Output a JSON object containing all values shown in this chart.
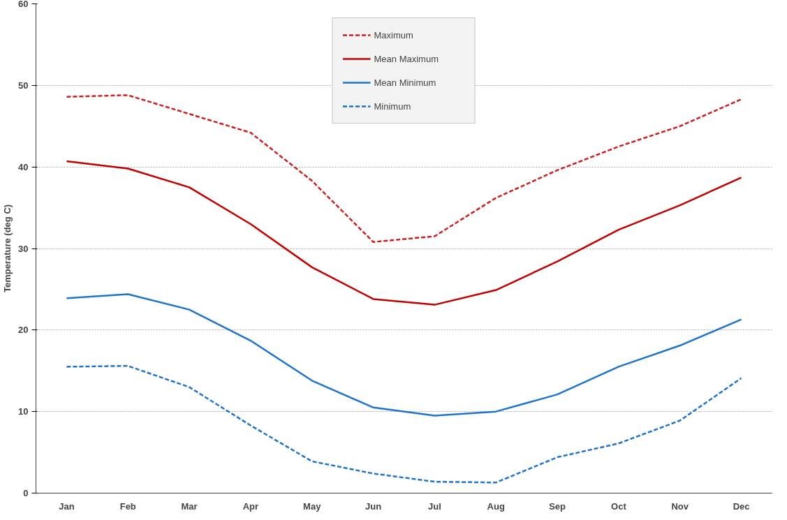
{
  "chart_data": {
    "type": "line",
    "ylabel": "Temperature (deg C)",
    "categories": [
      "Jan",
      "Feb",
      "Mar",
      "Apr",
      "May",
      "Jun",
      "Jul",
      "Aug",
      "Sep",
      "Oct",
      "Nov",
      "Dec"
    ],
    "ylim": [
      0,
      60
    ],
    "yticks": [
      0,
      10,
      20,
      30,
      40,
      50,
      60
    ],
    "grid": "y",
    "legend": "top",
    "marker": "none",
    "series": [
      {
        "name": "Maximum",
        "color": "#cc1f1f",
        "line_style": "dashed",
        "values": [
          48.6,
          48.8,
          46.5,
          44.2,
          38.3,
          30.8,
          31.5,
          36.2,
          39.6,
          42.5,
          45.0,
          48.3
        ]
      },
      {
        "name": "Mean Maximum",
        "color": "#c00000",
        "line_style": "solid",
        "values": [
          40.7,
          39.8,
          37.5,
          33.0,
          27.7,
          23.8,
          23.1,
          24.9,
          28.4,
          32.3,
          35.3,
          38.7
        ]
      },
      {
        "name": "Mean Minimum",
        "color": "#1f73c8",
        "line_style": "solid",
        "values": [
          23.9,
          24.4,
          22.5,
          18.7,
          13.8,
          10.5,
          9.5,
          10.0,
          12.1,
          15.5,
          18.1,
          21.3
        ]
      },
      {
        "name": "Minimum",
        "color": "#1f73c8",
        "line_style": "dashed",
        "values": [
          15.5,
          15.6,
          13.0,
          8.3,
          3.9,
          2.4,
          1.4,
          1.3,
          4.4,
          6.1,
          8.9,
          14.1
        ]
      }
    ]
  }
}
